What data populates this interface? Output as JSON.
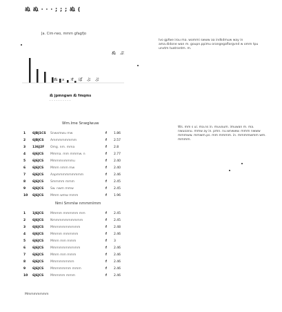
{
  "header": {
    "title": "ぬ ぬ · · · ; ; ; ぬ ( "
  },
  "chart": {
    "title": "Ja. Cim·rwo, mmm gfagfjo",
    "caption_line1": "ぬ jpmngwn ぬ  fmqms",
    "caption_line2": "· · · · · · · · · ·",
    "markers": [
      "ぬ",
      "ぷ"
    ],
    "tick_labels": [
      "ぬ",
      "x",
      "オ",
      "ぱ",
      "ぶ",
      "ぷ"
    ]
  },
  "chart_data": {
    "type": "bar",
    "categories": [
      "1",
      "2",
      "3",
      "4",
      "5",
      "6",
      "7"
    ],
    "values": [
      9,
      5,
      4,
      2,
      1.5,
      1,
      0.7
    ],
    "title": "Ja. Cim·rwo, mmm gfagfjo",
    "xlabel": "",
    "ylabel": "",
    "ylim": [
      0,
      10
    ]
  },
  "right_notes": {
    "note1": "Ivo gpfwe irou ma. wommi swww aa indkdmuw way in ama.didone wan m. goupn.ppimu orangegaflorgvnd w omm tpu unvtm tuatrantm. m.",
    "note2": "Ws. mm s ui. ma.ns in. muvoum. imuwan m. ma. nwuoanu. mmw ay in. pmn. nu.wnwww. mmm nwww mmmww. mmwm.ps. mm mmmm. in. mmmmwmm wm. mmmm."
  },
  "section1": {
    "title": "Wm.lme  Snwglwuw",
    "rows": [
      {
        "num": "1",
        "date": "6JBJ1CS",
        "title": "Snwxmwu mw",
        "pts": "f",
        "score": "1.86"
      },
      {
        "num": "2",
        "date": "6JBJCS",
        "title": "Ammmmmmmm",
        "pts": "f",
        "score": "2.57"
      },
      {
        "num": "3",
        "date": "136J2F",
        "title": "Omg. nm. mma",
        "pts": "f",
        "score": "2.8"
      },
      {
        "num": "4",
        "date": "6J6JCS",
        "title": "Mmma. mm mmmw. n",
        "pts": "f",
        "score": "2.77"
      },
      {
        "num": "5",
        "date": "6J6JCS",
        "title": "Mmmmnmmmu",
        "pts": "f",
        "score": "2.40"
      },
      {
        "num": "6",
        "date": "6J6JCS",
        "title": "Mmm nmm mw",
        "pts": "f",
        "score": "2.40"
      },
      {
        "num": "7",
        "date": "6J6JCS",
        "title": "Aapmmmmmmmmm",
        "pts": "f",
        "score": "2.46"
      },
      {
        "num": "8",
        "date": "6J6JCS",
        "title": "Smmmm mmm",
        "pts": "f",
        "score": "2.45"
      },
      {
        "num": "9",
        "date": "6J6JCS",
        "title": "Sw. nwm mmw",
        "pts": "f",
        "score": "2.45"
      },
      {
        "num": "10",
        "date": "6J6JCS",
        "title": "Mmm wmw mmm",
        "pts": "f",
        "score": "1.96"
      }
    ]
  },
  "section2": {
    "title": "Nmi Smmlw  nmmmlmm",
    "rows": [
      {
        "num": "1",
        "date": "1J6JCS",
        "title": "Mmmm mmmmm mm",
        "pts": "f",
        "score": "2.45"
      },
      {
        "num": "2",
        "date": "6J6JCS",
        "title": "Nmmmmmmmmmm",
        "pts": "f",
        "score": "2.45"
      },
      {
        "num": "3",
        "date": "6J6JCS",
        "title": "Mmmmmmmmmm",
        "pts": "f",
        "score": "2.48"
      },
      {
        "num": "4",
        "date": "6J6JCS",
        "title": "Mmmm mmmmm",
        "pts": "f",
        "score": "2.46"
      },
      {
        "num": "5",
        "date": "6J6JCS",
        "title": "Mmm mm mmm",
        "pts": "f",
        "score": "3"
      },
      {
        "num": "6",
        "date": "6J6JCS",
        "title": "Mmmmmmmmmm",
        "pts": "f",
        "score": "2.46"
      },
      {
        "num": "7",
        "date": "6J6JCS",
        "title": "Mmm mm mmm",
        "pts": "f",
        "score": "2.46"
      },
      {
        "num": "8",
        "date": "6J6JCS",
        "title": "Mmmmmmmm",
        "pts": "f",
        "score": "2.46"
      },
      {
        "num": "9",
        "date": "6J6JCS",
        "title": "Mmmmmmm mmm",
        "pts": "f",
        "score": "2.46"
      },
      {
        "num": "10",
        "date": "6J6JCS",
        "title": "Mmmmm mmm",
        "pts": "f",
        "score": "2.46"
      }
    ]
  },
  "footer": {
    "text": "Mmmmmmmm"
  }
}
